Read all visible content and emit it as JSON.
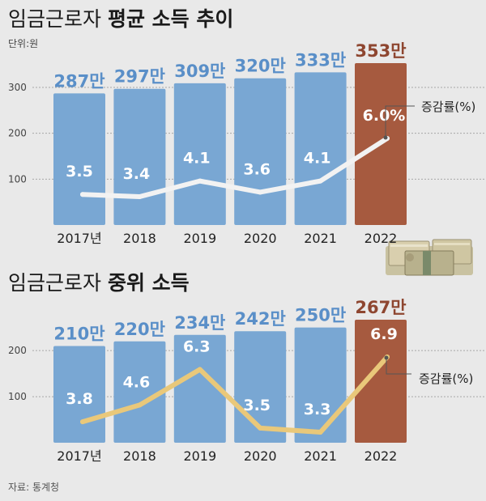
{
  "colors": {
    "background": "#e9e9e9",
    "bar_blue": "#79a7d3",
    "bar_highlight": "#a65a3f",
    "value_blue": "#5a8fc8",
    "value_highlight": "#8e4630",
    "grid": "#a8a8a8",
    "line_top": "#f2f2f2",
    "line_bottom": "#e9c87a",
    "text": "#222222"
  },
  "unit_label": "단위:원",
  "source": "자료: 통계청",
  "money_stack": {
    "icon": "money-stack-icon"
  },
  "chart_data": [
    {
      "type": "bar",
      "title_prefix": "임금근로자 ",
      "title_bold": "평균 소득 추이",
      "categories": [
        "2017년",
        "2018",
        "2019",
        "2020",
        "2021",
        "2022"
      ],
      "values": [
        287,
        297,
        309,
        320,
        333,
        353
      ],
      "value_labels": [
        "287만",
        "297만",
        "309만",
        "320만",
        "333만",
        "353만"
      ],
      "highlight_index": 5,
      "yticks": [
        100,
        200,
        300
      ],
      "ylim": [
        0,
        353
      ],
      "line_series": {
        "name": "증감률(%)",
        "values": [
          3.5,
          3.4,
          4.1,
          3.6,
          4.1,
          6.0
        ],
        "labels": [
          "3.5",
          "3.4",
          "4.1",
          "3.6",
          "4.1",
          "6.0%"
        ]
      }
    },
    {
      "type": "bar",
      "title_prefix": "임금근로자 ",
      "title_bold": "중위 소득",
      "categories": [
        "2017년",
        "2018",
        "2019",
        "2020",
        "2021",
        "2022"
      ],
      "values": [
        210,
        220,
        234,
        242,
        250,
        267
      ],
      "value_labels": [
        "210만",
        "220만",
        "234만",
        "242만",
        "250만",
        "267만"
      ],
      "highlight_index": 5,
      "yticks": [
        100,
        200
      ],
      "ylim": [
        0,
        267
      ],
      "line_series": {
        "name": "증감률(%)",
        "values": [
          3.8,
          4.6,
          6.3,
          3.5,
          3.3,
          6.9
        ],
        "labels": [
          "3.8",
          "4.6",
          "6.3",
          "3.5",
          "3.3",
          "6.9"
        ]
      }
    }
  ]
}
